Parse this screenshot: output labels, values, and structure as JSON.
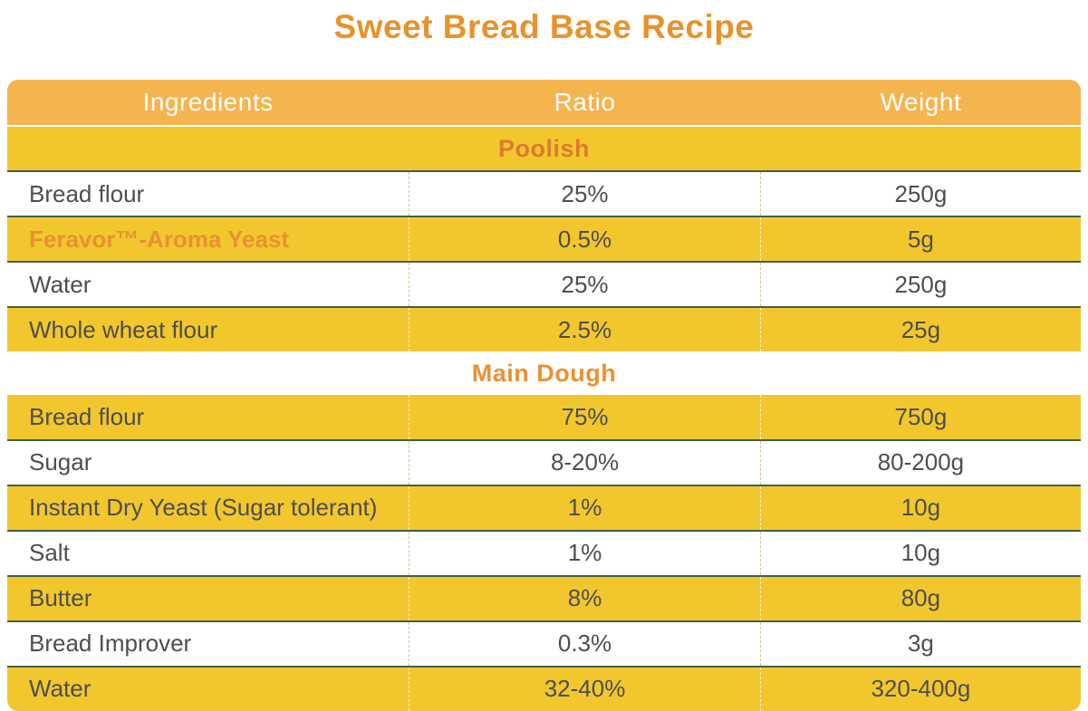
{
  "title": "Sweet Bread Base Recipe",
  "colors": {
    "title_orange": "#E8922B",
    "header_bg": "#F6B44E",
    "row_yellow": "#F2C72E",
    "separator_green": "#41604A",
    "section_poolish_orange": "#DA7C2D",
    "section_maindough_orange": "#EC9130",
    "highlight_orange": "#E8922F",
    "body_text": "#4E4E4E"
  },
  "table": {
    "headers": [
      "Ingredients",
      "Ratio",
      "Weight"
    ],
    "rows": [
      {
        "type": "section",
        "label": "Poolish"
      },
      {
        "type": "data",
        "ingredient": "Bread flour",
        "ratio": "25%",
        "weight": "250g"
      },
      {
        "type": "data",
        "ingredient": "Feravor™-Aroma Yeast",
        "ratio": "0.5%",
        "weight": "5g",
        "highlighted": true
      },
      {
        "type": "data",
        "ingredient": "Water",
        "ratio": "25%",
        "weight": "250g"
      },
      {
        "type": "data",
        "ingredient": "Whole wheat flour",
        "ratio": "2.5%",
        "weight": "25g"
      },
      {
        "type": "section",
        "label": "Main Dough"
      },
      {
        "type": "data",
        "ingredient": "Bread flour",
        "ratio": "75%",
        "weight": "750g"
      },
      {
        "type": "data",
        "ingredient": "Sugar",
        "ratio": "8-20%",
        "weight": "80-200g"
      },
      {
        "type": "data",
        "ingredient": "Instant Dry Yeast (Sugar tolerant)",
        "ratio": "1%",
        "weight": "10g"
      },
      {
        "type": "data",
        "ingredient": "Salt",
        "ratio": "1%",
        "weight": "10g"
      },
      {
        "type": "data",
        "ingredient": "Butter",
        "ratio": "8%",
        "weight": "80g"
      },
      {
        "type": "data",
        "ingredient": "Bread Improver",
        "ratio": "0.3%",
        "weight": "3g"
      },
      {
        "type": "data",
        "ingredient": "Water",
        "ratio": "32-40%",
        "weight": "320-400g"
      }
    ]
  }
}
